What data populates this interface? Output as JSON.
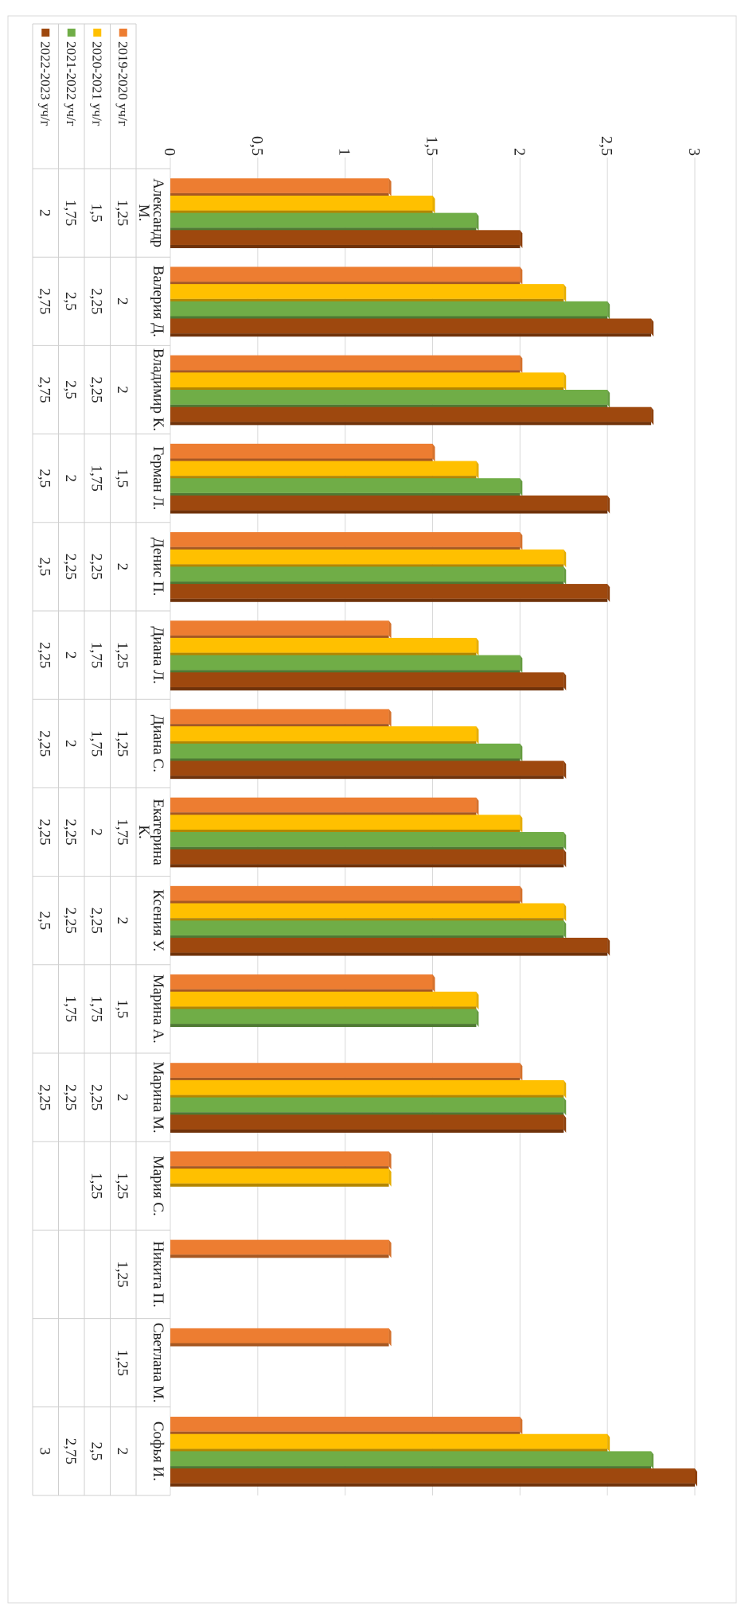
{
  "chart_data": {
    "type": "bar",
    "orientation": "horizontal-bars-rotated-page",
    "xlim": [
      0,
      3
    ],
    "ticks": [
      "0",
      "0,5",
      "1",
      "1,5",
      "2",
      "2,5",
      "3"
    ],
    "grid": true,
    "legend_placement": "table-left",
    "categories": [
      "Александр М.",
      "Валерия Д.",
      "Владимир К.",
      "Герман Л.",
      "Денис П.",
      "Диана Л.",
      "Диана С.",
      "Екатерина К.",
      "Ксения У.",
      "Марина А.",
      "Марина М.",
      "Мария С.",
      "Никита П.",
      "Светлана М.",
      "Софья И."
    ],
    "series": [
      {
        "name": "2019-2020 уч/г",
        "color": "#ED7D31",
        "values": [
          1.25,
          2,
          2,
          1.5,
          2,
          1.25,
          1.25,
          1.75,
          2,
          1.5,
          2,
          1.25,
          1.25,
          1.25,
          2
        ],
        "labels": [
          "1,25",
          "2",
          "2",
          "1,5",
          "2",
          "1,25",
          "1,25",
          "1,75",
          "2",
          "1,5",
          "2",
          "1,25",
          "1,25",
          "1,25",
          "2"
        ]
      },
      {
        "name": "2020-2021 уч/г",
        "color": "#FFC000",
        "values": [
          1.5,
          2.25,
          2.25,
          1.75,
          2.25,
          1.75,
          1.75,
          2,
          2.25,
          1.75,
          2.25,
          1.25,
          null,
          null,
          2.5
        ],
        "labels": [
          "1,5",
          "2,25",
          "2,25",
          "1,75",
          "2,25",
          "1,75",
          "1,75",
          "2",
          "2,25",
          "1,75",
          "2,25",
          "1,25",
          "",
          "",
          "2,5"
        ]
      },
      {
        "name": "2021-2022 уч/г",
        "color": "#70AD47",
        "values": [
          1.75,
          2.5,
          2.5,
          2,
          2.25,
          2,
          2,
          2.25,
          2.25,
          1.75,
          2.25,
          null,
          null,
          null,
          2.75
        ],
        "labels": [
          "1,75",
          "2,5",
          "2,5",
          "2",
          "2,25",
          "2",
          "2",
          "2,25",
          "2,25",
          "1,75",
          "2,25",
          "",
          "",
          "",
          "2,75"
        ]
      },
      {
        "name": "2022-2023 уч/г",
        "color": "#9E480E",
        "values": [
          2,
          2.75,
          2.75,
          2.5,
          2.5,
          2.25,
          2.25,
          2.25,
          2.5,
          null,
          2.25,
          null,
          null,
          null,
          3
        ],
        "labels": [
          "2",
          "2,75",
          "2,75",
          "2,5",
          "2,5",
          "2,25",
          "2,25",
          "2,25",
          "2,5",
          "",
          "2,25",
          "",
          "",
          "",
          "3"
        ]
      }
    ]
  }
}
